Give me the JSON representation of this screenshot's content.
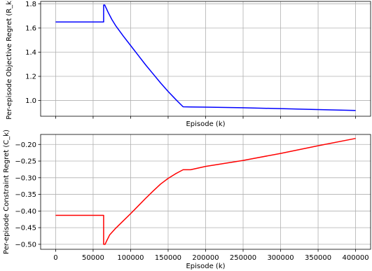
{
  "chart_data": [
    {
      "type": "line",
      "xlabel": "Episode (k)",
      "ylabel": "Per-episode Objective Regret (R_k)",
      "xlim": [
        -20000,
        420000
      ],
      "ylim": [
        0.87,
        1.82
      ],
      "x_ticks": [
        0,
        50000,
        100000,
        150000,
        200000,
        250000,
        300000,
        350000,
        400000
      ],
      "x_tick_labels_shown": false,
      "y_ticks": [
        1.0,
        1.2,
        1.4,
        1.6,
        1.8
      ],
      "y_tick_labels": [
        "1.0",
        "1.2",
        "1.4",
        "1.6",
        "1.8"
      ],
      "grid": true,
      "series": [
        {
          "color": "#0000ff",
          "x": [
            0,
            64000,
            64000,
            65500,
            67000,
            70000,
            75000,
            80000,
            90000,
            100000,
            110000,
            120000,
            130000,
            140000,
            150000,
            160000,
            170000,
            180000,
            200000,
            250000,
            300000,
            350000,
            400000
          ],
          "y": [
            1.65,
            1.65,
            1.79,
            1.79,
            1.77,
            1.73,
            1.67,
            1.62,
            1.535,
            1.455,
            1.375,
            1.295,
            1.22,
            1.145,
            1.075,
            1.01,
            0.948,
            0.947,
            0.945,
            0.94,
            0.933,
            0.925,
            0.918
          ]
        }
      ]
    },
    {
      "type": "line",
      "xlabel": "Episode (k)",
      "ylabel": "Per-episode Constraint Regret (C_k)",
      "xlim": [
        -20000,
        420000
      ],
      "ylim": [
        -0.515,
        -0.17
      ],
      "x_ticks": [
        0,
        50000,
        100000,
        150000,
        200000,
        250000,
        300000,
        350000,
        400000
      ],
      "x_tick_labels": [
        "0",
        "50000",
        "100000",
        "150000",
        "200000",
        "250000",
        "300000",
        "350000",
        "400000"
      ],
      "y_ticks": [
        -0.5,
        -0.45,
        -0.4,
        -0.35,
        -0.3,
        -0.25,
        -0.2
      ],
      "y_tick_labels": [
        "−0.50",
        "−0.45",
        "−0.40",
        "−0.35",
        "−0.30",
        "−0.25",
        "−0.20"
      ],
      "grid": true,
      "series": [
        {
          "color": "#ff0000",
          "x": [
            0,
            64000,
            64000,
            66000,
            68000,
            72000,
            80000,
            90000,
            100000,
            110000,
            120000,
            130000,
            140000,
            150000,
            160000,
            170000,
            180000,
            190000,
            200000,
            250000,
            300000,
            350000,
            400000
          ],
          "y": [
            -0.413,
            -0.413,
            -0.5,
            -0.5,
            -0.49,
            -0.472,
            -0.452,
            -0.43,
            -0.408,
            -0.385,
            -0.362,
            -0.34,
            -0.319,
            -0.302,
            -0.288,
            -0.276,
            -0.276,
            -0.271,
            -0.266,
            -0.248,
            -0.227,
            -0.204,
            -0.182
          ]
        }
      ]
    }
  ]
}
